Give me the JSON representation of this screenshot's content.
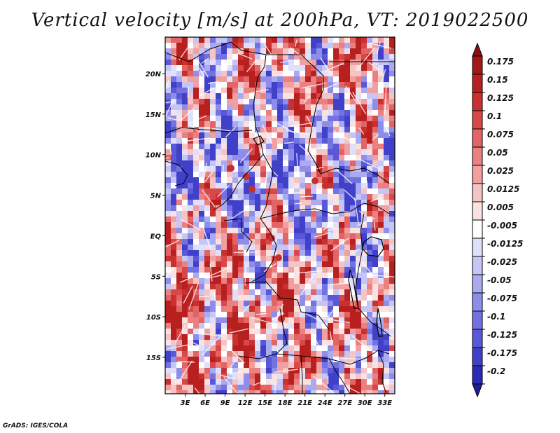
{
  "title": "Vertical velocity [m/s] at 200hPa, VT: 2019022500",
  "credit": "GrADS: IGES/COLA",
  "map": {
    "lat_range": [
      -19.5,
      24.5
    ],
    "lon_range": [
      0,
      34.5
    ],
    "lat_ticks": [
      {
        "value": 20,
        "label": "20N"
      },
      {
        "value": 15,
        "label": "15N"
      },
      {
        "value": 10,
        "label": "10N"
      },
      {
        "value": 5,
        "label": "5N"
      },
      {
        "value": 0,
        "label": "EQ"
      },
      {
        "value": -5,
        "label": "5S"
      },
      {
        "value": -10,
        "label": "10S"
      },
      {
        "value": -15,
        "label": "15S"
      }
    ],
    "lon_ticks": [
      {
        "value": 3,
        "label": "3E"
      },
      {
        "value": 6,
        "label": "6E"
      },
      {
        "value": 9,
        "label": "9E"
      },
      {
        "value": 12,
        "label": "12E"
      },
      {
        "value": 15,
        "label": "15E"
      },
      {
        "value": 18,
        "label": "18E"
      },
      {
        "value": 21,
        "label": "21E"
      },
      {
        "value": 24,
        "label": "24E"
      },
      {
        "value": 27,
        "label": "27E"
      },
      {
        "value": 30,
        "label": "30E"
      },
      {
        "value": 33,
        "label": "33E"
      }
    ]
  },
  "colorbar": {
    "levels": [
      {
        "label": "0.175",
        "color": "#a31818"
      },
      {
        "label": "0.15",
        "color": "#b82020"
      },
      {
        "label": "0.125",
        "color": "#c93030"
      },
      {
        "label": "0.1",
        "color": "#d84848"
      },
      {
        "label": "0.075",
        "color": "#e26464"
      },
      {
        "label": "0.05",
        "color": "#ea8080"
      },
      {
        "label": "0.025",
        "color": "#f0a0a0"
      },
      {
        "label": "0.0125",
        "color": "#f6c4c4"
      },
      {
        "label": "0.005",
        "color": "#fbe2e2"
      },
      {
        "label": "-0.005",
        "color": "#ffffff"
      },
      {
        "label": "-0.0125",
        "color": "#e0e0fa"
      },
      {
        "label": "-0.025",
        "color": "#c6c6f6"
      },
      {
        "label": "-0.05",
        "color": "#aaaaf0"
      },
      {
        "label": "-0.075",
        "color": "#8e8eea"
      },
      {
        "label": "-0.1",
        "color": "#7272e2"
      },
      {
        "label": "-0.125",
        "color": "#5858d8"
      },
      {
        "label": "-0.175",
        "color": "#4040c8"
      },
      {
        "label": "-0.2",
        "color": "#2a2ab4"
      }
    ],
    "top_cap_color": "#8e1010",
    "bottom_cap_color": "#1e1e9c"
  },
  "colors": {
    "positive_strong": "#c23030",
    "positive_weak": "#ef9a9a",
    "neutral": "#ffffff",
    "negative_weak": "#b4b4f2",
    "negative_strong": "#4848c4",
    "border": "#000000"
  }
}
